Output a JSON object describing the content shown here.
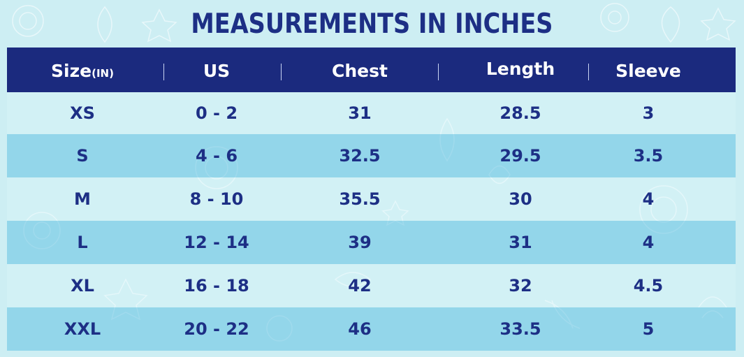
{
  "title": "MEASUREMENTS IN INCHES",
  "colors": {
    "header_bg": "#1b2a7e",
    "text": "#1d2f85",
    "background": "#cdeef3",
    "stripe": "#7fcde4"
  },
  "headers": {
    "size": "Size",
    "size_unit": "(IN)",
    "us": "US",
    "chest": "Chest",
    "length": "Length",
    "sleeve": "Sleeve"
  },
  "rows": [
    {
      "size": "XS",
      "us": "0 - 2",
      "chest": "31",
      "length": "28.5",
      "sleeve": "3"
    },
    {
      "size": "S",
      "us": "4 - 6",
      "chest": "32.5",
      "length": "29.5",
      "sleeve": "3.5"
    },
    {
      "size": "M",
      "us": "8 - 10",
      "chest": "35.5",
      "length": "30",
      "sleeve": "4"
    },
    {
      "size": "L",
      "us": "12 - 14",
      "chest": "39",
      "length": "31",
      "sleeve": "4"
    },
    {
      "size": "XL",
      "us": "16 - 18",
      "chest": "42",
      "length": "32",
      "sleeve": "4.5"
    },
    {
      "size": "XXL",
      "us": "20 - 22",
      "chest": "46",
      "length": "33.5",
      "sleeve": "5"
    }
  ]
}
